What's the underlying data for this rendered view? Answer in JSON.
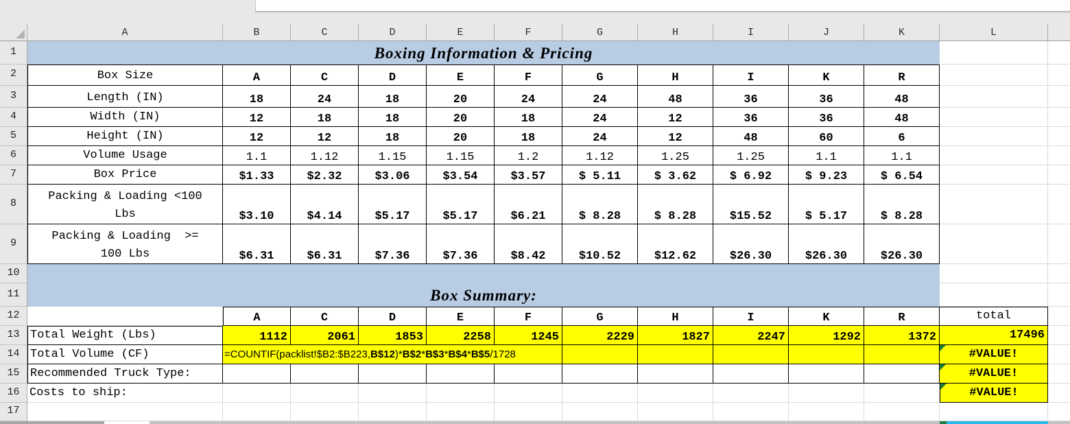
{
  "sheet": {
    "column_headers": [
      "A",
      "B",
      "C",
      "D",
      "E",
      "F",
      "G",
      "H",
      "I",
      "J",
      "K",
      "L"
    ],
    "row_headers": [
      "1",
      "2",
      "3",
      "4",
      "5",
      "6",
      "7",
      "8",
      "9",
      "10",
      "11",
      "12",
      "13",
      "14",
      "15",
      "16",
      "17"
    ],
    "title_pricing": "Boxing Information & Pricing",
    "title_summary": "Box Summary:",
    "pricing_table": {
      "rows": [
        {
          "label": "Box Size",
          "values": [
            "A",
            "C",
            "D",
            "E",
            "F",
            "G",
            "H",
            "I",
            "K",
            "R"
          ]
        },
        {
          "label": "Length (IN)",
          "values": [
            "18",
            "24",
            "18",
            "20",
            "24",
            "24",
            "48",
            "36",
            "36",
            "48"
          ]
        },
        {
          "label": "Width (IN)",
          "values": [
            "12",
            "18",
            "18",
            "20",
            "18",
            "24",
            "12",
            "36",
            "36",
            "48"
          ]
        },
        {
          "label": "Height (IN)",
          "values": [
            "12",
            "12",
            "18",
            "20",
            "18",
            "24",
            "12",
            "48",
            "60",
            "6"
          ]
        },
        {
          "label": "Volume Usage",
          "values": [
            "1.1",
            "1.12",
            "1.15",
            "1.15",
            "1.2",
            "1.12",
            "1.25",
            "1.25",
            "1.1",
            "1.1"
          ]
        },
        {
          "label": "Box Price",
          "values": [
            "$1.33",
            "$2.32",
            "$3.06",
            "$3.54",
            "$3.57",
            "$ 5.11",
            "$ 3.62",
            "$ 6.92",
            "$ 9.23",
            "$ 6.54"
          ]
        },
        {
          "label": "Packing & Loading <100\nLbs",
          "values": [
            "$3.10",
            "$4.14",
            "$5.17",
            "$5.17",
            "$6.21",
            "$ 8.28",
            "$ 8.28",
            "$15.52",
            "$ 5.17",
            "$ 8.28"
          ]
        },
        {
          "label": "Packing & Loading  >=\n100 Lbs",
          "values": [
            "$6.31",
            "$6.31",
            "$7.36",
            "$7.36",
            "$8.42",
            "$10.52",
            "$12.62",
            "$26.30",
            "$26.30",
            "$26.30"
          ]
        }
      ]
    },
    "summary_table": {
      "header": [
        "A",
        "C",
        "D",
        "E",
        "F",
        "G",
        "H",
        "I",
        "K",
        "R"
      ],
      "total_label": "total",
      "weight_label": "Total Weight (Lbs)",
      "weight_values": [
        "1112",
        "2061",
        "1853",
        "2258",
        "1245",
        "2229",
        "1827",
        "2247",
        "1292",
        "1372"
      ],
      "weight_total": "17496",
      "volume_label": "Total Volume (CF)",
      "volume_formula_segments": [
        {
          "t": "=COUNTIF(packlist!$B2:$B223,",
          "b": false
        },
        {
          "t": "B$12",
          "b": true
        },
        {
          "t": ")*",
          "b": false
        },
        {
          "t": "B$2",
          "b": true
        },
        {
          "t": "*",
          "b": false
        },
        {
          "t": "B$3",
          "b": true
        },
        {
          "t": "*",
          "b": false
        },
        {
          "t": "B$4",
          "b": true
        },
        {
          "t": "*",
          "b": false
        },
        {
          "t": "B$5",
          "b": true
        },
        {
          "t": "/1728",
          "b": false
        }
      ],
      "volume_total": "#VALUE!",
      "truck_label": "Recommended Truck Type:",
      "truck_total": "#VALUE!",
      "costs_label": "Costs to ship:",
      "costs_total": "#VALUE!"
    },
    "colors": {
      "band_blue": "#b8cce4",
      "highlight_yellow": "#ffff00",
      "error_triangle_green": "#1e7e34",
      "bottom_bar_cyan": "#29b9e8"
    }
  }
}
